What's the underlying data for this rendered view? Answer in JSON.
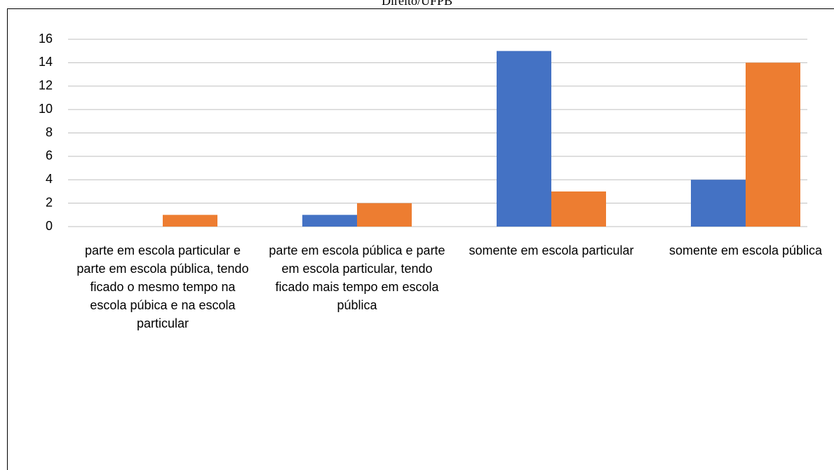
{
  "chart_data": {
    "type": "bar",
    "title": "Direito/UFPB",
    "categories": [
      "parte em escola particular e parte em escola pública, tendo ficado o mesmo tempo na escola púbica e na escola particular",
      "parte em escola pública e parte em escola particular, tendo ficado mais tempo em escola pública",
      "somente em escola particular",
      "somente em escola pública"
    ],
    "series": [
      {
        "color": "#4472c4",
        "values": [
          0,
          1,
          15,
          4
        ]
      },
      {
        "color": "#ed7d31",
        "values": [
          1,
          2,
          3,
          14
        ]
      }
    ],
    "ylim": [
      0,
      16
    ],
    "yticks": [
      0,
      2,
      4,
      6,
      8,
      10,
      12,
      14,
      16
    ],
    "grid": true
  }
}
